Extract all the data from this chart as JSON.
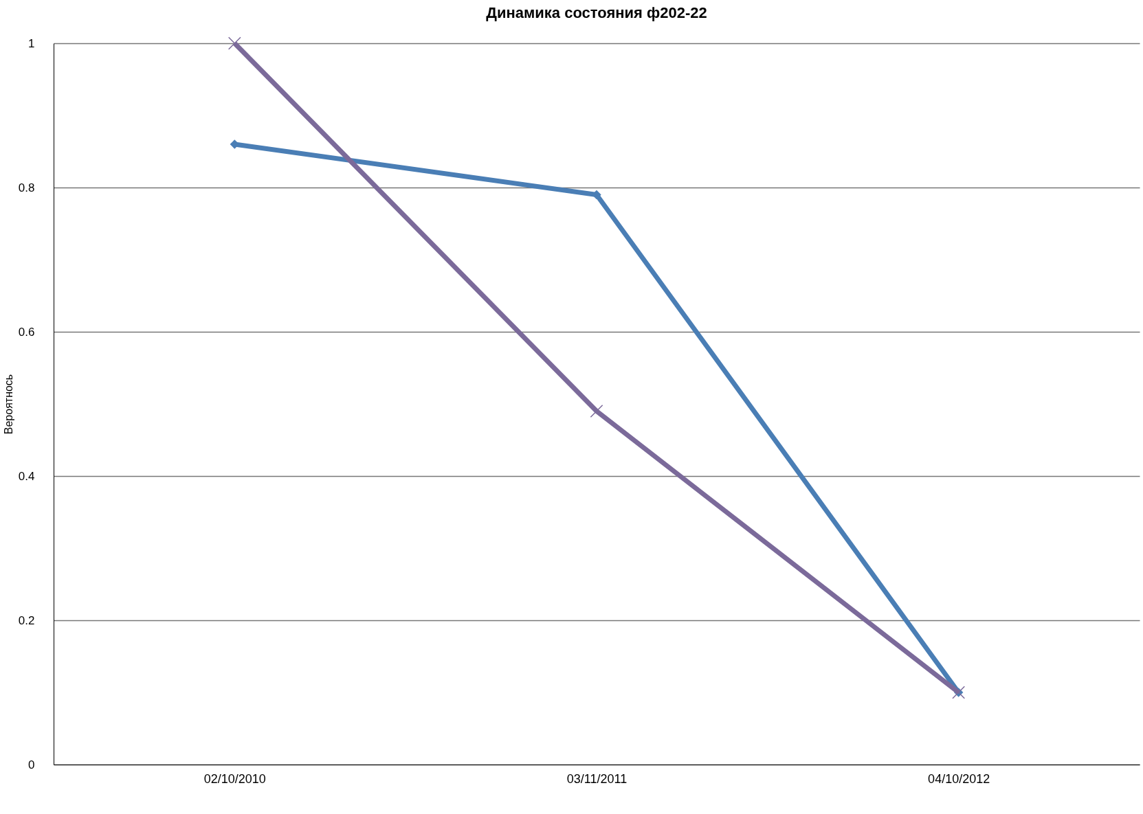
{
  "chart_data": {
    "type": "line",
    "title": "Динамика состояния ф202-22",
    "ylabel": "Вероятнось",
    "categories": [
      "02/10/2010",
      "03/11/2011",
      "04/10/2012"
    ],
    "series": [
      {
        "color": "#4a7eb5",
        "values": [
          0.86,
          0.79,
          0.1
        ],
        "marker": "diamond"
      },
      {
        "color": "#7b6a9a",
        "values": [
          1,
          0.49,
          0.1
        ],
        "marker": "cross"
      }
    ],
    "ylim": [
      0,
      1
    ],
    "yticks": [
      0,
      0.2,
      0.4,
      0.6,
      0.8,
      1
    ],
    "grid": "y"
  }
}
